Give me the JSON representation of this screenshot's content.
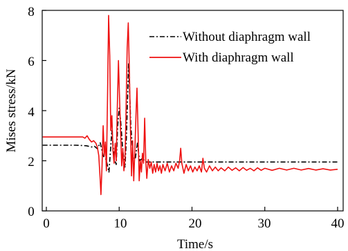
{
  "chart_data": {
    "type": "line",
    "xlabel": "Time/s",
    "ylabel": "Mises stress/kN",
    "xlim": [
      0,
      40
    ],
    "ylim": [
      0,
      8
    ],
    "xticks": [
      "0",
      "10",
      "20",
      "30",
      "40"
    ],
    "yticks": [
      "0",
      "2",
      "4",
      "6",
      "8"
    ],
    "grid": false,
    "legend_position": "top-right",
    "series": [
      {
        "name": "Without diaphragm wall",
        "color": "#000000",
        "style": "dash-dot",
        "points": [
          [
            -0.5,
            2.62
          ],
          [
            2,
            2.62
          ],
          [
            4,
            2.62
          ],
          [
            5.5,
            2.6
          ],
          [
            6.2,
            2.55
          ],
          [
            6.6,
            2.58
          ],
          [
            7,
            2.48
          ],
          [
            7.4,
            2.72
          ],
          [
            7.8,
            2.2
          ],
          [
            8.2,
            2.05
          ],
          [
            8.6,
            1.55
          ],
          [
            9.0,
            3.2
          ],
          [
            9.3,
            2.1
          ],
          [
            9.6,
            1.85
          ],
          [
            9.8,
            3.4
          ],
          [
            10.0,
            4.1
          ],
          [
            10.2,
            3.6
          ],
          [
            10.5,
            2.4
          ],
          [
            10.8,
            1.75
          ],
          [
            11.0,
            3.0
          ],
          [
            11.3,
            5.9
          ],
          [
            11.6,
            3.4
          ],
          [
            11.9,
            2.2
          ],
          [
            12.2,
            2.05
          ],
          [
            12.5,
            2.7
          ],
          [
            12.8,
            2.0
          ],
          [
            13.2,
            2.1
          ],
          [
            13.7,
            1.95
          ],
          [
            14.5,
            1.95
          ],
          [
            16,
            1.95
          ],
          [
            20,
            1.95
          ],
          [
            30,
            1.95
          ],
          [
            40,
            1.95
          ]
        ]
      },
      {
        "name": "With diaphragm wall",
        "color": "#ee1111",
        "style": "solid",
        "points": [
          [
            -0.5,
            2.95
          ],
          [
            5,
            2.95
          ],
          [
            5.3,
            2.9
          ],
          [
            5.6,
            3.0
          ],
          [
            5.9,
            2.85
          ],
          [
            6.2,
            2.75
          ],
          [
            6.5,
            2.8
          ],
          [
            6.8,
            2.7
          ],
          [
            7.0,
            2.55
          ],
          [
            7.2,
            2.2
          ],
          [
            7.4,
            1.2
          ],
          [
            7.5,
            0.65
          ],
          [
            7.65,
            1.8
          ],
          [
            7.8,
            3.4
          ],
          [
            7.95,
            2.2
          ],
          [
            8.1,
            2.75
          ],
          [
            8.25,
            1.6
          ],
          [
            8.4,
            4.5
          ],
          [
            8.55,
            7.8
          ],
          [
            8.7,
            6.2
          ],
          [
            8.85,
            3.2
          ],
          [
            9.0,
            3.8
          ],
          [
            9.15,
            2.4
          ],
          [
            9.3,
            1.9
          ],
          [
            9.45,
            2.7
          ],
          [
            9.6,
            2.0
          ],
          [
            9.75,
            4.2
          ],
          [
            9.9,
            6.0
          ],
          [
            10.05,
            4.5
          ],
          [
            10.2,
            3.1
          ],
          [
            10.35,
            1.8
          ],
          [
            10.5,
            2.5
          ],
          [
            10.65,
            1.6
          ],
          [
            10.8,
            2.1
          ],
          [
            10.95,
            4.0
          ],
          [
            11.1,
            6.5
          ],
          [
            11.25,
            7.5
          ],
          [
            11.4,
            5.6
          ],
          [
            11.55,
            3.2
          ],
          [
            11.7,
            1.4
          ],
          [
            11.85,
            2.8
          ],
          [
            12.0,
            1.2
          ],
          [
            12.15,
            2.4
          ],
          [
            12.3,
            3.8
          ],
          [
            12.45,
            4.9
          ],
          [
            12.6,
            3.1
          ],
          [
            12.75,
            1.2
          ],
          [
            12.9,
            2.0
          ],
          [
            13.05,
            1.55
          ],
          [
            13.2,
            2.3
          ],
          [
            13.35,
            1.9
          ],
          [
            13.5,
            3.7
          ],
          [
            13.65,
            2.0
          ],
          [
            13.8,
            1.3
          ],
          [
            14.0,
            2.05
          ],
          [
            14.2,
            1.7
          ],
          [
            14.4,
            1.95
          ],
          [
            14.6,
            1.5
          ],
          [
            14.8,
            1.85
          ],
          [
            15.0,
            1.55
          ],
          [
            15.2,
            1.9
          ],
          [
            15.4,
            1.6
          ],
          [
            15.6,
            1.8
          ],
          [
            15.8,
            1.5
          ],
          [
            16.0,
            1.85
          ],
          [
            16.3,
            1.6
          ],
          [
            16.6,
            1.9
          ],
          [
            16.9,
            1.55
          ],
          [
            17.2,
            1.8
          ],
          [
            17.5,
            1.6
          ],
          [
            17.8,
            1.9
          ],
          [
            18.1,
            1.7
          ],
          [
            18.3,
            2.0
          ],
          [
            18.45,
            2.5
          ],
          [
            18.6,
            1.9
          ],
          [
            18.9,
            1.5
          ],
          [
            19.2,
            1.85
          ],
          [
            19.5,
            1.6
          ],
          [
            19.8,
            1.8
          ],
          [
            20.1,
            1.55
          ],
          [
            20.4,
            1.75
          ],
          [
            20.7,
            1.6
          ],
          [
            21.0,
            1.8
          ],
          [
            21.3,
            1.55
          ],
          [
            21.5,
            2.1
          ],
          [
            21.7,
            1.7
          ],
          [
            22.0,
            1.55
          ],
          [
            22.4,
            1.8
          ],
          [
            22.8,
            1.6
          ],
          [
            23.2,
            1.75
          ],
          [
            23.6,
            1.6
          ],
          [
            24.0,
            1.72
          ],
          [
            24.5,
            1.6
          ],
          [
            25.0,
            1.75
          ],
          [
            25.5,
            1.62
          ],
          [
            26.0,
            1.72
          ],
          [
            26.5,
            1.6
          ],
          [
            27.0,
            1.73
          ],
          [
            27.5,
            1.62
          ],
          [
            28.0,
            1.7
          ],
          [
            28.5,
            1.6
          ],
          [
            29.0,
            1.72
          ],
          [
            29.5,
            1.62
          ],
          [
            30.0,
            1.7
          ],
          [
            31,
            1.62
          ],
          [
            32,
            1.7
          ],
          [
            33,
            1.63
          ],
          [
            34,
            1.7
          ],
          [
            35,
            1.63
          ],
          [
            36,
            1.69
          ],
          [
            37,
            1.63
          ],
          [
            38,
            1.68
          ],
          [
            39,
            1.63
          ],
          [
            40,
            1.66
          ]
        ]
      }
    ]
  }
}
